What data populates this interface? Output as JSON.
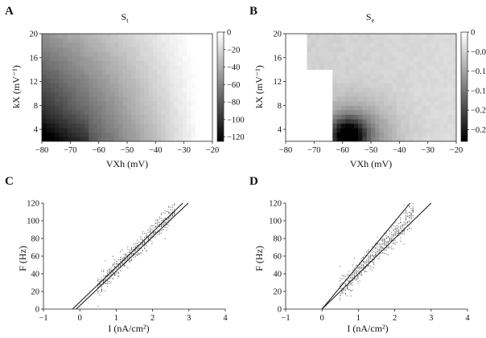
{
  "chart_data": [
    {
      "panel": "A",
      "type": "heatmap",
      "title": "S",
      "title_subscript": "t",
      "xlabel": "VXh (mV)",
      "ylabel": "kX (mV⁻¹)",
      "xlim": [
        -80,
        -20
      ],
      "ylim": [
        2,
        20
      ],
      "xticks": [
        "−80",
        "−70",
        "−60",
        "−50",
        "−40",
        "−30",
        "−20"
      ],
      "yticks": [
        "4",
        "8",
        "12",
        "16",
        "20"
      ],
      "colorbar": {
        "range": [
          -125,
          0
        ],
        "ticks": [
          "0",
          "−20",
          "−40",
          "−60",
          "−80",
          "−100",
          "−120"
        ]
      },
      "colormap": "gray (black = min, white = 0)",
      "description_values": {
        "min_region": {
          "VXh": -75,
          "kX": 3,
          "value": -125
        },
        "max_region": {
          "VXh": -20,
          "kX": 20,
          "value": 0
        }
      }
    },
    {
      "panel": "B",
      "type": "heatmap",
      "title": "S",
      "title_subscript": "e",
      "xlabel": "VXh (mV)",
      "ylabel": "kX (mV⁻¹)",
      "xlim": [
        -80,
        -20
      ],
      "ylim": [
        2,
        20
      ],
      "xticks": [
        "−80",
        "−70",
        "−60",
        "−50",
        "−40",
        "−30",
        "−20"
      ],
      "yticks": [
        "4",
        "8",
        "12",
        "16",
        "20"
      ],
      "colorbar": {
        "range": [
          -0.28,
          0
        ],
        "ticks": [
          "0",
          "−0.05",
          "−0.1",
          "−0.15",
          "−0.2",
          "−0.25"
        ]
      },
      "colormap": "gray (black = min, white = 0)",
      "description_values": {
        "min_region": {
          "VXh": -58,
          "kX": 3,
          "value": -0.28
        },
        "blank_region": "VXh < −64 mV (white)"
      }
    },
    {
      "panel": "C",
      "type": "scatter",
      "xlabel": "I (nA/cm²)",
      "ylabel": "F (Hz)",
      "xlim": [
        -1,
        4
      ],
      "ylim": [
        0,
        120
      ],
      "xticks": [
        "−1",
        "0",
        "1",
        "2",
        "3",
        "4"
      ],
      "yticks": [
        "0",
        "20",
        "40",
        "60",
        "80",
        "100",
        "120"
      ],
      "lines": [
        {
          "points": [
            [
              -0.2,
              0
            ],
            [
              2.83,
              120
            ]
          ]
        },
        {
          "points": [
            [
              -0.1,
              0
            ],
            [
              2.98,
              120
            ]
          ]
        }
      ],
      "scatter_band": {
        "x_range": [
          0.5,
          2.6
        ],
        "slope": 40,
        "intercept": 6,
        "spread": 10
      }
    },
    {
      "panel": "D",
      "type": "scatter",
      "xlabel": "I (nA/cm²)",
      "ylabel": "F (Hz)",
      "xlim": [
        -1,
        4
      ],
      "ylim": [
        0,
        120
      ],
      "xticks": [
        "−1",
        "0",
        "1",
        "2",
        "3",
        "4"
      ],
      "yticks": [
        "0",
        "20",
        "40",
        "60",
        "80",
        "100",
        "120"
      ],
      "lines": [
        {
          "points": [
            [
              0,
              0
            ],
            [
              2.42,
              120
            ]
          ]
        },
        {
          "points": [
            [
              0,
              0
            ],
            [
              3.0,
              120
            ]
          ]
        }
      ],
      "scatter_band": {
        "x_range": [
          0.5,
          2.5
        ],
        "slope": 43,
        "intercept": 0,
        "spread": 12
      }
    }
  ]
}
